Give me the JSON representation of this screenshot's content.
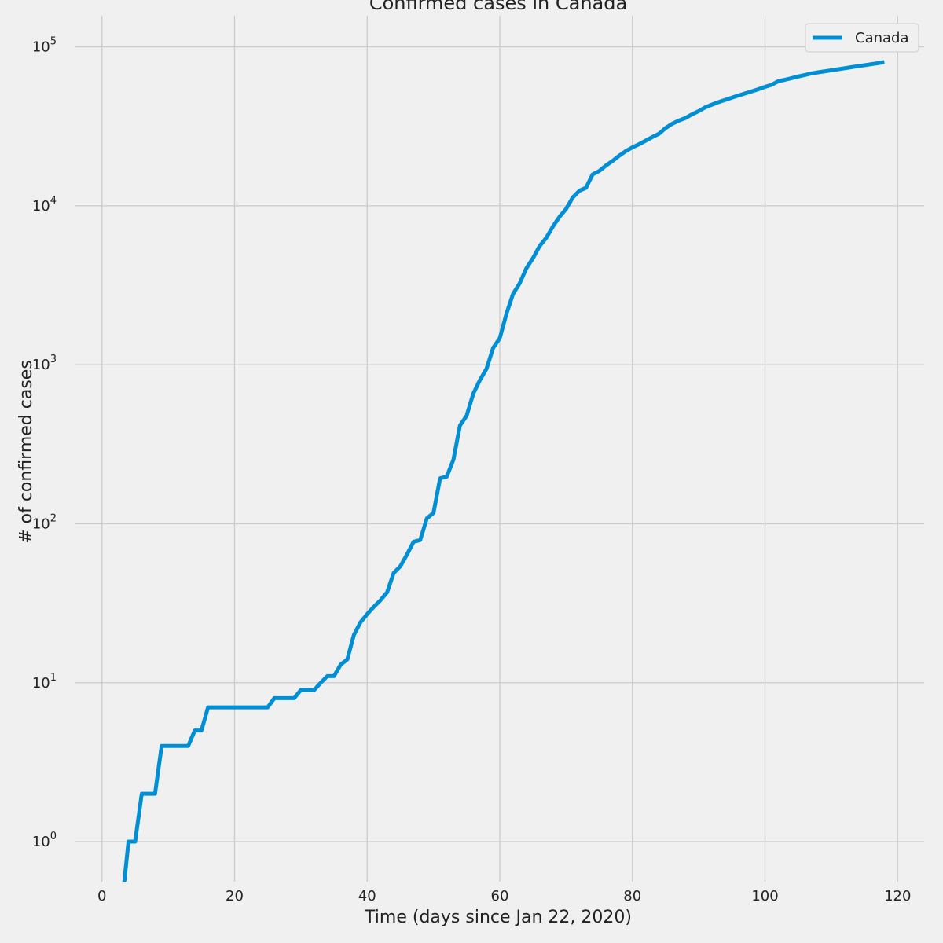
{
  "chart_data": {
    "type": "line",
    "title": "Confirmed cases in Canada",
    "xlabel": "Time (days since Jan 22, 2020)",
    "ylabel": "# of confirmed cases",
    "xlim": [
      -4,
      124
    ],
    "ylim": [
      0.56,
      140000
    ],
    "yscale": "log",
    "grid": true,
    "legend_position": "top-right",
    "line_color": "#008fd5",
    "x_ticks": [
      0,
      20,
      40,
      60,
      80,
      100,
      120
    ],
    "x_tick_labels": [
      "0",
      "20",
      "40",
      "60",
      "80",
      "100",
      "120"
    ],
    "y_ticks": [
      1,
      10,
      100,
      1000,
      10000,
      100000
    ],
    "y_tick_labels": [
      {
        "base": "10",
        "exp": "0"
      },
      {
        "base": "10",
        "exp": "1"
      },
      {
        "base": "10",
        "exp": "2"
      },
      {
        "base": "10",
        "exp": "3"
      },
      {
        "base": "10",
        "exp": "4"
      },
      {
        "base": "10",
        "exp": "5"
      }
    ],
    "series": [
      {
        "name": "Canada",
        "x": [
          3,
          4,
          5,
          6,
          7,
          8,
          9,
          10,
          11,
          12,
          13,
          14,
          15,
          16,
          17,
          18,
          19,
          20,
          21,
          22,
          23,
          24,
          25,
          26,
          27,
          28,
          29,
          30,
          31,
          32,
          33,
          34,
          35,
          36,
          37,
          38,
          39,
          40,
          41,
          42,
          43,
          44,
          45,
          46,
          47,
          48,
          49,
          50,
          51,
          52,
          53,
          54,
          55,
          56,
          57,
          58,
          59,
          60,
          61,
          62,
          63,
          64,
          65,
          66,
          67,
          68,
          69,
          70,
          71,
          72,
          73,
          74,
          75,
          76,
          77,
          78,
          79,
          80,
          81,
          82,
          83,
          84,
          85,
          86,
          87,
          88,
          89,
          90,
          91,
          92,
          93,
          94,
          95,
          96,
          97,
          98,
          99,
          100,
          101,
          102,
          103,
          104,
          105,
          106,
          107,
          108,
          109,
          110,
          111,
          112,
          113,
          114,
          115,
          116,
          117,
          118
        ],
        "y": [
          0,
          1,
          1,
          2,
          2,
          2,
          4,
          4,
          4,
          4,
          4,
          5,
          5,
          7,
          7,
          7,
          7,
          7,
          7,
          7,
          7,
          7,
          7,
          8,
          8,
          8,
          8,
          9,
          9,
          9,
          10,
          11,
          11,
          13,
          14,
          20,
          24,
          27,
          30,
          33,
          37,
          49,
          54,
          64,
          77,
          79,
          108,
          117,
          193,
          198,
          252,
          415,
          478,
          657,
          800,
          943,
          1277,
          1469,
          2091,
          2792,
          3251,
          4042,
          4682,
          5576,
          6280,
          7398,
          8527,
          9560,
          11284,
          12437,
          12978,
          15756,
          16563,
          17897,
          19141,
          20654,
          22059,
          23316,
          24383,
          25680,
          27063,
          28379,
          30809,
          32813,
          34356,
          35633,
          37658,
          39402,
          41663,
          43286,
          44919,
          46367,
          47868,
          49416,
          50919,
          52476,
          54137,
          56026,
          57730,
          60777,
          62046,
          63496,
          65092,
          66462,
          68001,
          69121,
          70126,
          71160,
          72232,
          73314,
          74430,
          75535,
          76634,
          77743,
          78878,
          80142
        ]
      }
    ]
  }
}
